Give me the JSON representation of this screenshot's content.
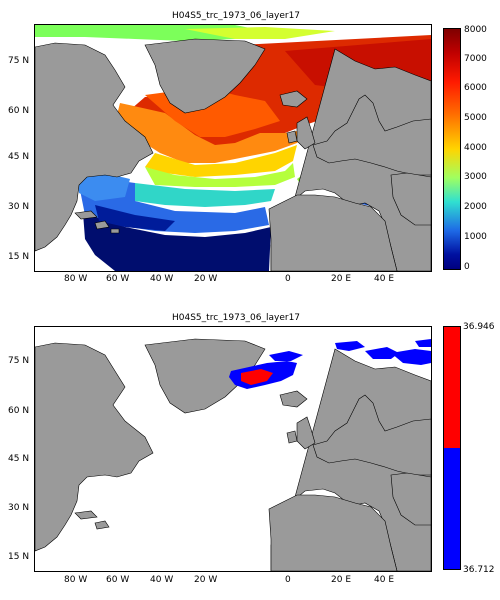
{
  "top_panel": {
    "title": "H04S5_trc_1973_06_layer17",
    "lat_labels": [
      "75 N",
      "60 N",
      "45 N",
      "30 N",
      "15 N"
    ],
    "lon_labels": [
      "80 W",
      "60 W",
      "40 W",
      "20 W",
      "0",
      "20 E",
      "40 E"
    ],
    "colorbar_labels": [
      "8000",
      "7000",
      "6000",
      "5000",
      "4000",
      "3000",
      "2000",
      "1000",
      "0"
    ],
    "colorbar_range": [
      0,
      8000
    ],
    "colormap": "jet"
  },
  "bottom_panel": {
    "title": "H04S5_trc_1973_06_layer17",
    "lat_labels": [
      "75 N",
      "60 N",
      "45 N",
      "30 N",
      "15 N"
    ],
    "lon_labels": [
      "80 W",
      "60 W",
      "40 W",
      "20 W",
      "0",
      "20 E",
      "40 E"
    ],
    "colorbar_labels": [
      "36.946",
      "36.712"
    ],
    "colorbar_colors": {
      "high": "#ff0000",
      "low": "#0000ff"
    }
  },
  "colors": {
    "land": "#9a9a9a",
    "ocean_no_data": "#ffffff"
  }
}
